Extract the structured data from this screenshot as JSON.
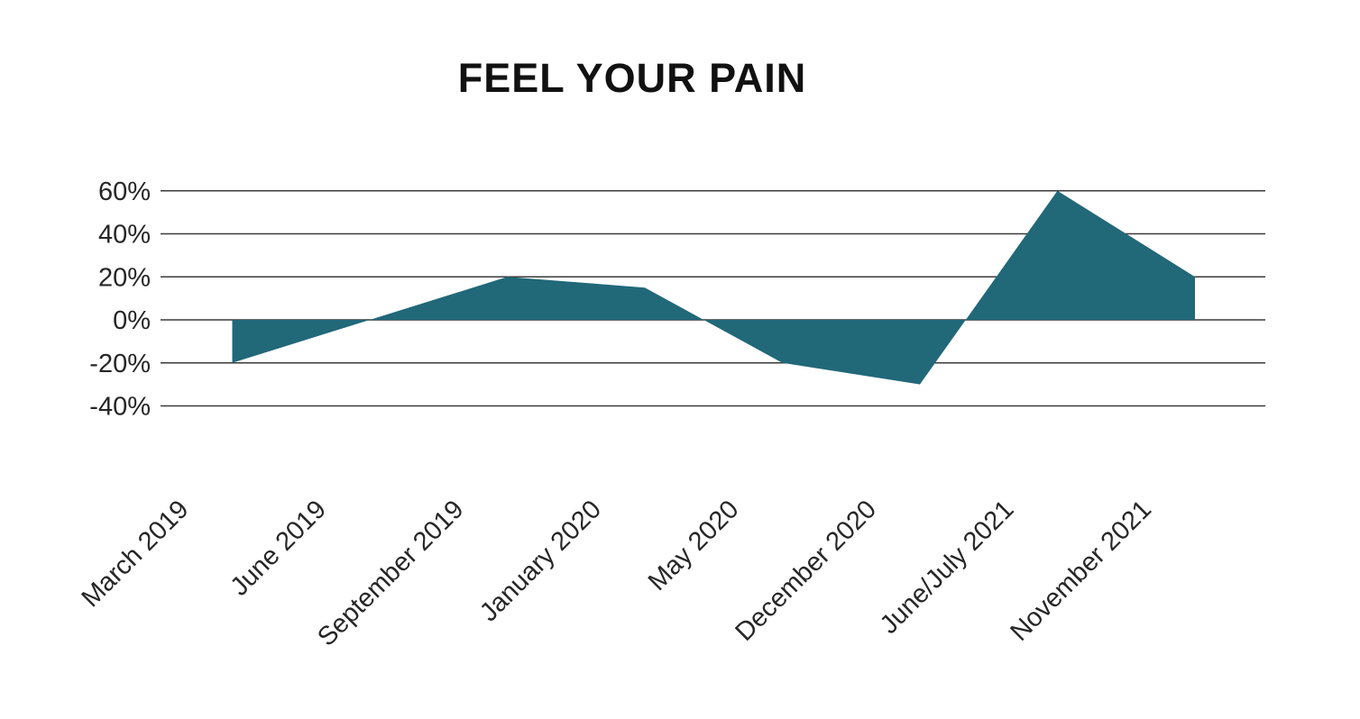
{
  "page": {
    "background": "#ffffff"
  },
  "chart_data": {
    "type": "area",
    "title": "FEEL YOUR PAIN",
    "categories": [
      "March 2019",
      "June 2019",
      "September 2019",
      "January 2020",
      "May 2020",
      "December 2020",
      "June/July 2021",
      "November 2021"
    ],
    "values": [
      -20,
      0,
      20,
      15,
      -20,
      -30,
      60,
      20
    ],
    "xlabel": "",
    "ylabel": "",
    "y_axis": {
      "tick_labels": [
        "60%",
        "40%",
        "20%",
        "0%",
        "-20%",
        "-40%"
      ],
      "tick_values": [
        60,
        40,
        20,
        0,
        -20,
        -40
      ],
      "range": [
        -40,
        60
      ],
      "unit": "%"
    },
    "baseline": 0,
    "grid": "horizontal",
    "legend": "none",
    "x_label_rotation_deg": -45,
    "colors": {
      "area_fill": "#216879",
      "gridline": "#3a3a3a",
      "axis_text": "#262626",
      "title_text": "#111111"
    }
  }
}
